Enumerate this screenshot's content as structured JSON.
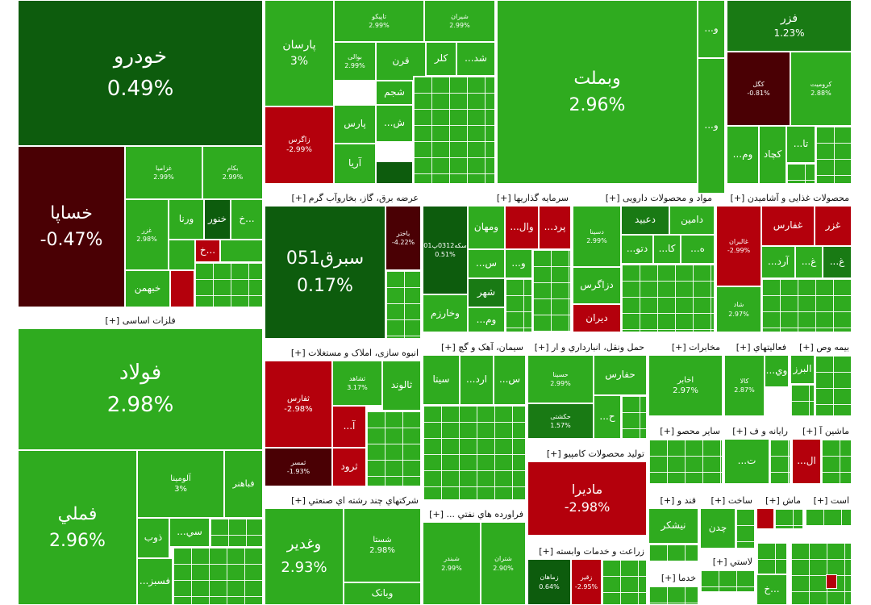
{
  "colors": {
    "green": "#2fab1f",
    "dark_green": "#0d5c0d",
    "mid_green": "#197a14",
    "red": "#b4000c",
    "dark_red": "#4a0004"
  },
  "sectors": {
    "metals": "فلزات اساسی [+]",
    "power": "عرضه برق، گاز، بخاروآب گرم [+]",
    "investment": "سرمایه گذاریها [+]",
    "pharma": "مواد و محصولات دارویی [+]",
    "food": "محصولات غذایی و آشامیدن [+]",
    "construction": "انبوه سازی، املاک و مستغلات [+]",
    "cement": "سیمان، آهک و گچ [+]",
    "transport": "حمل ونقل، انبارداري و ار [+]",
    "telecom": "مخابرات [+]",
    "activities": "فعالیتهاي [+]",
    "insurance": "بیمه وص [+]",
    "multi": "شرکتهاي چند رشته اي صنعتي [+]",
    "refinery": "فراورده هاي نفتي ... [+]",
    "computer": "تولید محصولات کامپیو [+]",
    "agri": "زراعت و خدمات وابسته [+]",
    "other_products": "سایر محصو [+]",
    "rayane": "رایانه و ف [+]",
    "machinery": "ماشین آ [+]",
    "sugar": "قند و [+]",
    "build": "ساخت [+]",
    "mash": "ماش [+]",
    "ast": "است [+]",
    "khadama": "خدما [+]",
    "plastic": "لاستي [+]"
  },
  "tiles": {
    "khodro": {
      "name": "خودرو",
      "pct": "0.49%"
    },
    "khsapa": {
      "name": "خساپا",
      "pct": "-0.47%"
    },
    "ghazamia": {
      "name": "غزامیا",
      "pct": "2.99%"
    },
    "bekam": {
      "name": "بکام",
      "pct": "2.99%"
    },
    "ghazar": {
      "name": "غزر",
      "pct": "2.98%"
    },
    "varna": {
      "name": "ورنا"
    },
    "khnor": {
      "name": "خنور"
    },
    "kh1": {
      "name": "خ..."
    },
    "kh2": {
      "name": "خ..."
    },
    "khbahman": {
      "name": "خبهمن"
    },
    "parsan": {
      "name": "پارسان",
      "pct": "3%"
    },
    "tapiko": {
      "name": "تاپیکو",
      "pct": "2.99%"
    },
    "shiran": {
      "name": "شیران",
      "pct": "2.99%"
    },
    "qarn": {
      "name": "قرن"
    },
    "kelar": {
      "name": "کلر"
    },
    "shad": {
      "name": "...شد"
    },
    "bavali": {
      "name": "بوالی",
      "pct": "2.99%"
    },
    "shajam": {
      "name": "شجم"
    },
    "pars": {
      "name": "پارس"
    },
    "sh": {
      "name": "...ش"
    },
    "arya": {
      "name": "آریا"
    },
    "zagros": {
      "name": "زاگرس",
      "pct": "-2.99%"
    },
    "vebmelat": {
      "name": "وبملت",
      "pct": "2.96%"
    },
    "v1": {
      "name": "...و"
    },
    "v2": {
      "name": "...و"
    },
    "fazar": {
      "name": "فزر",
      "pct": "1.23%"
    },
    "kegol": {
      "name": "کگل",
      "pct": "-0.81%"
    },
    "kromit": {
      "name": "کرومیت",
      "pct": "2.88%"
    },
    "ta": {
      "name": "...تا"
    },
    "kechad": {
      "name": "کچاد"
    },
    "vom": {
      "name": "...وم"
    },
    "fuladh": {
      "name": "فولاد",
      "pct": "2.98%"
    },
    "fameli": {
      "name": "فملي",
      "pct": "2.96%"
    },
    "alumina": {
      "name": "آلومینا",
      "pct": "3%"
    },
    "fabahnar": {
      "name": "فباهنر"
    },
    "si": {
      "name": "...سي"
    },
    "zob": {
      "name": "ذوب"
    },
    "fasbaz": {
      "name": "...فسبز"
    },
    "sebargh": {
      "name": "سبرق051",
      "pct": "0.17%"
    },
    "bakhtar": {
      "name": "باختر",
      "pct": "-4.22%"
    },
    "sekeh": {
      "name": "سکه0312پ01",
      "pct": "0.51%"
    },
    "vamehan": {
      "name": "ومهان"
    },
    "val": {
      "name": "...وال"
    },
    "pard": {
      "name": "...پرد"
    },
    "s": {
      "name": "...س"
    },
    "v3": {
      "name": "...و"
    },
    "shahr": {
      "name": "شهر"
    },
    "vekharazm": {
      "name": "وخارزم"
    },
    "vom2": {
      "name": "...وم"
    },
    "damin": {
      "name": "دامین"
    },
    "dabid": {
      "name": "دعبید"
    },
    "daseina": {
      "name": "دسینا",
      "pct": "2.99%"
    },
    "dato": {
      "name": "...دتو"
    },
    "ka": {
      "name": "...کا"
    },
    "h": {
      "name": "...ه"
    },
    "dazagros": {
      "name": "دزاگرس"
    },
    "diran": {
      "name": "دیران"
    },
    "ghalbaran": {
      "name": "غالبران",
      "pct": "-2.99%"
    },
    "ghefars": {
      "name": "غفارس"
    },
    "ghazar2": {
      "name": "غزر"
    },
    "ard": {
      "name": "...آرد"
    },
    "gh": {
      "name": "...غ"
    },
    "gh2": {
      "name": "...غ"
    },
    "shadh": {
      "name": "شاد",
      "pct": "2.97%"
    },
    "thefars": {
      "name": "ثفارس",
      "pct": "-2.98%"
    },
    "thshahr": {
      "name": "ثشاهد",
      "pct": "3.17%"
    },
    "thaland": {
      "name": "ثالوند"
    },
    "a": {
      "name": "...آ"
    },
    "thorud": {
      "name": "ثرود"
    },
    "thmasr": {
      "name": "ثمسر",
      "pct": "-1.93%"
    },
    "sita": {
      "name": "سیتا"
    },
    "ard2": {
      "name": "...ارد"
    },
    "s2": {
      "name": "...س"
    },
    "hesina": {
      "name": "حسینا",
      "pct": "2.99%"
    },
    "hafars": {
      "name": "حفارس"
    },
    "hekshti": {
      "name": "حکشتی",
      "pct": "1.57%"
    },
    "h2": {
      "name": "...ح"
    },
    "akhaber": {
      "name": "اخابر",
      "pct": "2.97%"
    },
    "kala": {
      "name": "کالا",
      "pct": "2.87%"
    },
    "alborz": {
      "name": "البرز"
    },
    "vi": {
      "name": "...وي"
    },
    "madira": {
      "name": "ماديرا",
      "pct": "-2.98%"
    },
    "al": {
      "name": "...ال"
    },
    "t": {
      "name": "...ت"
    },
    "neshkar": {
      "name": "نیشکر"
    },
    "chadan": {
      "name": "چدن"
    },
    "veghadir": {
      "name": "وغدير",
      "pct": "2.93%"
    },
    "shesta": {
      "name": "شستا",
      "pct": "2.98%"
    },
    "vebank": {
      "name": "وبانک"
    },
    "shebandar": {
      "name": "شبندر",
      "pct": "2.99%"
    },
    "shiran2": {
      "name": "شتران",
      "pct": "2.90%"
    },
    "zamahan": {
      "name": "زماهان",
      "pct": "0.64%"
    },
    "zaghar": {
      "name": "زقیر",
      "pct": "-2.95%"
    }
  }
}
